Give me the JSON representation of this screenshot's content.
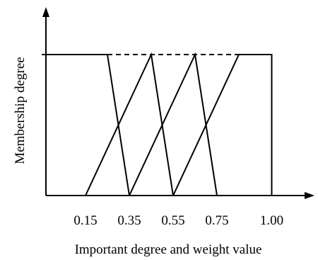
{
  "chart_data": {
    "type": "line",
    "xlabel": "Important degree and weight value",
    "ylabel": "Membership degree",
    "x_ticks": [
      "0.15",
      "0.35",
      "0.55",
      "0.75",
      "1.00"
    ],
    "x_tick_values": [
      0.15,
      0.35,
      0.55,
      0.75,
      1.0
    ],
    "ylim": [
      0,
      1
    ],
    "grid": false,
    "legend": "none",
    "series": [
      {
        "x": [
          -0.05,
          0.25,
          0.35
        ],
        "y": [
          1,
          1,
          0
        ],
        "style": "solid"
      },
      {
        "x": [
          0.15,
          0.45,
          0.55
        ],
        "y": [
          0,
          1,
          0
        ],
        "style": "solid"
      },
      {
        "x": [
          0.35,
          0.65,
          0.75
        ],
        "y": [
          0,
          1,
          0
        ],
        "style": "solid"
      },
      {
        "x": [
          0.55,
          0.85,
          1.0,
          1.0
        ],
        "y": [
          0,
          1,
          1,
          0
        ],
        "style": "solid"
      },
      {
        "x": [
          0.25,
          0.85
        ],
        "y": [
          1,
          1
        ],
        "style": "dashed"
      }
    ],
    "colors": {
      "line": "#000000",
      "axis": "#000000"
    }
  }
}
